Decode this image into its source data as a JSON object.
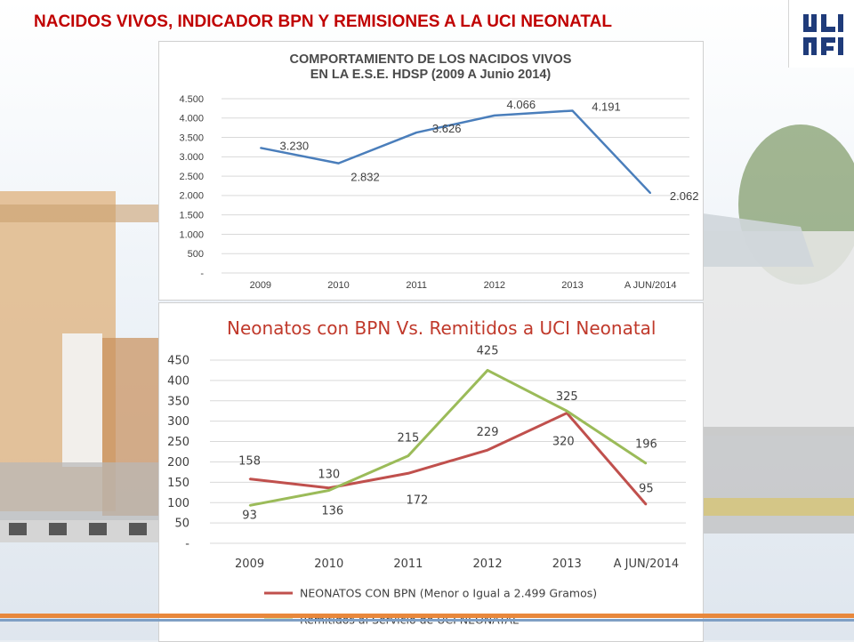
{
  "slide": {
    "title": "NACIDOS VIVOS, INDICADOR BPN Y REMISIONES A LA UCI NEONATAL"
  },
  "chart_data": [
    {
      "type": "line",
      "title_line1": "COMPORTAMIENTO DE LOS NACIDOS VIVOS",
      "title_line2": "EN LA E.S.E. HDSP (2009 A Junio 2014)",
      "categories": [
        "2009",
        "2010",
        "2011",
        "2012",
        "2013",
        "A JUN/2014"
      ],
      "series": [
        {
          "values": [
            3230,
            2832,
            3626,
            4066,
            4191,
            2062
          ],
          "labels": [
            "3.230",
            "2.832",
            "3.626",
            "4.066",
            "4.191",
            "2.062"
          ],
          "color": "#4a7ebb"
        }
      ],
      "ylim": [
        0,
        4500
      ],
      "yticks": [
        0,
        500,
        1000,
        1500,
        2000,
        2500,
        3000,
        3500,
        4000,
        4500
      ],
      "ytick_labels": [
        "-",
        "500",
        "1.000",
        "1.500",
        "2.000",
        "2.500",
        "3.000",
        "3.500",
        "4.000",
        "4.500"
      ],
      "grid": true
    },
    {
      "type": "line",
      "title": "Neonatos con BPN Vs. Remitidos a UCI Neonatal",
      "categories": [
        "2009",
        "2010",
        "2011",
        "2012",
        "2013",
        "A JUN/2014"
      ],
      "series": [
        {
          "name": "NEONATOS CON BPN (Menor o Igual a  2.499 Gramos)",
          "values": [
            158,
            136,
            172,
            229,
            320,
            95
          ],
          "color": "#c0504d"
        },
        {
          "name": "Remitidos al Servicio de UCI NEONATAL",
          "values": [
            93,
            130,
            215,
            425,
            325,
            196
          ],
          "color": "#9bbb59"
        }
      ],
      "ylim": [
        0,
        450
      ],
      "yticks": [
        0,
        50,
        100,
        150,
        200,
        250,
        300,
        350,
        400,
        450
      ],
      "ytick_labels": [
        "-",
        "50",
        "100",
        "150",
        "200",
        "250",
        "300",
        "350",
        "400",
        "450"
      ],
      "grid": true,
      "legend": "bottom"
    }
  ]
}
